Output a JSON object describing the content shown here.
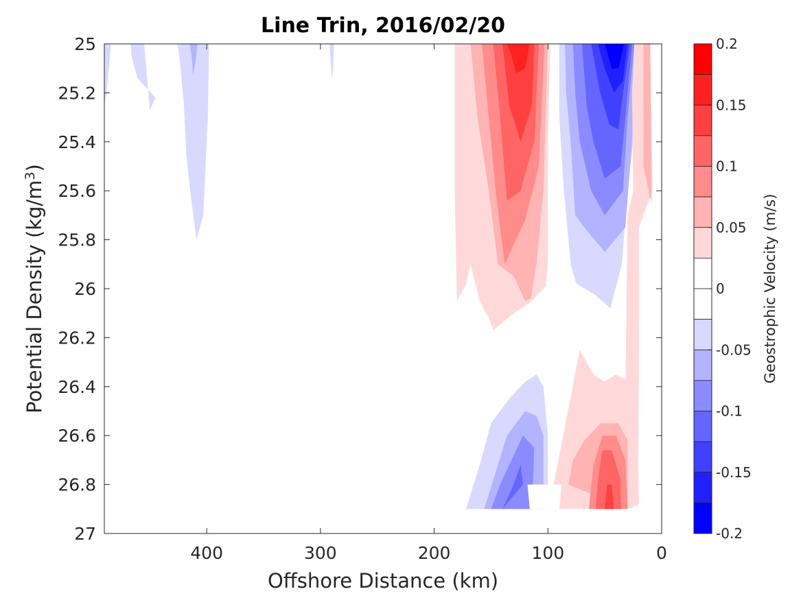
{
  "chart_data": {
    "type": "contour",
    "title": "Line Trin, 2016/02/20",
    "xlabel": "Offshore Distance (km)",
    "ylabel": "Potential Density (kg/m3)",
    "ylabel_base": "Potential Density (kg/m",
    "ylabel_sup": "3",
    "ylabel_close": ")",
    "xlim": [
      490,
      0
    ],
    "x_reversed": true,
    "ylim": [
      25,
      27
    ],
    "y_reversed": true,
    "xticks": [
      400,
      300,
      200,
      100,
      0
    ],
    "xtick_labels": [
      "400",
      "300",
      "200",
      "100",
      "0"
    ],
    "yticks": [
      25,
      25.2,
      25.4,
      25.6,
      25.8,
      26,
      26.2,
      26.4,
      26.6,
      26.8,
      27
    ],
    "ytick_labels": [
      "25",
      "25.2",
      "25.4",
      "25.6",
      "25.8",
      "26",
      "26.2",
      "26.4",
      "26.6",
      "26.8",
      "27"
    ],
    "colorbar": {
      "label": "Geostrophic Velocity (m/s)",
      "range": [
        -0.2,
        0.2
      ],
      "ticks": [
        0.2,
        0.15,
        0.1,
        0.05,
        0,
        -0.05,
        -0.1,
        -0.15,
        -0.2
      ],
      "tick_labels": [
        "0.2",
        "0.15",
        "0.1",
        "0.05",
        "0",
        "-0.05",
        "-0.1",
        "-0.15",
        "-0.2"
      ],
      "levels": [
        {
          "from": 0.175,
          "to": 0.2,
          "color": "#ff0000"
        },
        {
          "from": 0.15,
          "to": 0.175,
          "color": "#ff2020"
        },
        {
          "from": 0.125,
          "to": 0.15,
          "color": "#ff4040"
        },
        {
          "from": 0.1,
          "to": 0.125,
          "color": "#ff6565"
        },
        {
          "from": 0.075,
          "to": 0.1,
          "color": "#ff8b8b"
        },
        {
          "from": 0.05,
          "to": 0.075,
          "color": "#ffb3b3"
        },
        {
          "from": 0.025,
          "to": 0.05,
          "color": "#ffd9d9"
        },
        {
          "from": 0,
          "to": 0.025,
          "color": "#ffffff"
        },
        {
          "from": -0.025,
          "to": 0,
          "color": "#ffffff"
        },
        {
          "from": -0.05,
          "to": -0.025,
          "color": "#d9d9ff"
        },
        {
          "from": -0.075,
          "to": -0.05,
          "color": "#b3b3ff"
        },
        {
          "from": -0.1,
          "to": -0.075,
          "color": "#8b8bff"
        },
        {
          "from": -0.125,
          "to": -0.1,
          "color": "#6565ff"
        },
        {
          "from": -0.15,
          "to": -0.125,
          "color": "#4040ff"
        },
        {
          "from": -0.175,
          "to": -0.15,
          "color": "#2020ff"
        },
        {
          "from": -0.2,
          "to": -0.175,
          "color": "#0000ff"
        }
      ]
    },
    "regions": [
      {
        "name": "region-left-blue-1",
        "level": -0.0375,
        "points": [
          [
            490,
            25
          ],
          [
            484,
            25
          ],
          [
            488,
            25.2
          ],
          [
            490,
            25.25
          ]
        ]
      },
      {
        "name": "region-left-blue-2",
        "level": -0.0375,
        "points": [
          [
            467,
            25
          ],
          [
            455,
            25
          ],
          [
            450,
            25.27
          ],
          [
            445,
            25.22
          ],
          [
            461,
            25.14
          ],
          [
            466,
            25.05
          ]
        ]
      },
      {
        "name": "region-left-blue-3",
        "level": -0.0375,
        "points": [
          [
            426,
            25
          ],
          [
            398,
            25
          ],
          [
            399,
            25.3
          ],
          [
            403,
            25.7
          ],
          [
            409,
            25.8
          ],
          [
            414,
            25.62
          ],
          [
            418,
            25.45
          ],
          [
            420,
            25.25
          ],
          [
            424,
            25.05
          ]
        ]
      },
      {
        "name": "region-left-blue-4",
        "level": -0.0625,
        "points": [
          [
            415,
            25
          ],
          [
            408,
            25
          ],
          [
            410,
            25.08
          ],
          [
            412,
            25.13
          ],
          [
            413,
            25.06
          ]
        ]
      },
      {
        "name": "region-blue-speck",
        "level": -0.0375,
        "points": [
          [
            292,
            25
          ],
          [
            288,
            25
          ],
          [
            289,
            25.12
          ],
          [
            290,
            25.14
          ]
        ]
      },
      {
        "name": "region-upper-red-1",
        "level": 0.0375,
        "points": [
          [
            182,
            25
          ],
          [
            98,
            25
          ],
          [
            100,
            25.4
          ],
          [
            100,
            25.9
          ],
          [
            102,
            25.99
          ],
          [
            114,
            26.05
          ],
          [
            130,
            26.1
          ],
          [
            148,
            26.17
          ],
          [
            152,
            26.12
          ],
          [
            160,
            26.05
          ],
          [
            168,
            25.9
          ],
          [
            172,
            25.98
          ],
          [
            180,
            26.05
          ],
          [
            182,
            25.6
          ]
        ]
      },
      {
        "name": "region-upper-red-2",
        "level": 0.0625,
        "points": [
          [
            168,
            25
          ],
          [
            100,
            25
          ],
          [
            104,
            25.6
          ],
          [
            110,
            25.9
          ],
          [
            115,
            26.04
          ],
          [
            120,
            26.05
          ],
          [
            130,
            25.95
          ],
          [
            144,
            25.9
          ],
          [
            152,
            25.6
          ],
          [
            162,
            25.3
          ]
        ]
      },
      {
        "name": "region-upper-red-3",
        "level": 0.0875,
        "points": [
          [
            158,
            25
          ],
          [
            103,
            25
          ],
          [
            108,
            25.5
          ],
          [
            120,
            25.72
          ],
          [
            138,
            25.9
          ],
          [
            146,
            25.6
          ],
          [
            152,
            25.3
          ]
        ]
      },
      {
        "name": "region-upper-red-4",
        "level": 0.1125,
        "points": [
          [
            148,
            25
          ],
          [
            108,
            25
          ],
          [
            112,
            25.4
          ],
          [
            124,
            25.6
          ],
          [
            136,
            25.64
          ],
          [
            142,
            25.3
          ]
        ]
      },
      {
        "name": "region-upper-red-5",
        "level": 0.1375,
        "points": [
          [
            140,
            25
          ],
          [
            112,
            25
          ],
          [
            114,
            25.25
          ],
          [
            124,
            25.4
          ],
          [
            134,
            25.25
          ]
        ]
      },
      {
        "name": "region-upper-red-6",
        "level": 0.1625,
        "points": [
          [
            136,
            25
          ],
          [
            116,
            25
          ],
          [
            120,
            25.1
          ],
          [
            128,
            25.12
          ],
          [
            132,
            25.05
          ]
        ]
      },
      {
        "name": "region-upper-blue-1",
        "level": -0.0375,
        "points": [
          [
            90,
            25
          ],
          [
            18,
            25
          ],
          [
            22,
            25.2
          ],
          [
            25,
            25.4
          ],
          [
            30,
            25.6
          ],
          [
            35,
            25.9
          ],
          [
            45,
            26.08
          ],
          [
            60,
            26.02
          ],
          [
            75,
            25.98
          ],
          [
            80,
            25.9
          ],
          [
            86,
            25.6
          ],
          [
            90,
            25.3
          ]
        ]
      },
      {
        "name": "region-upper-blue-2",
        "level": -0.0625,
        "points": [
          [
            85,
            25
          ],
          [
            22,
            25
          ],
          [
            26,
            25.4
          ],
          [
            32,
            25.75
          ],
          [
            50,
            25.85
          ],
          [
            68,
            25.75
          ],
          [
            76,
            25.7
          ],
          [
            80,
            25.4
          ],
          [
            84,
            25.2
          ]
        ]
      },
      {
        "name": "region-upper-blue-3",
        "level": -0.0875,
        "points": [
          [
            78,
            25
          ],
          [
            24,
            25
          ],
          [
            30,
            25.3
          ],
          [
            34,
            25.6
          ],
          [
            50,
            25.7
          ],
          [
            62,
            25.6
          ],
          [
            72,
            25.4
          ],
          [
            76,
            25.2
          ]
        ]
      },
      {
        "name": "region-upper-blue-4",
        "level": -0.1125,
        "points": [
          [
            70,
            25
          ],
          [
            26,
            25
          ],
          [
            32,
            25.3
          ],
          [
            36,
            25.5
          ],
          [
            50,
            25.55
          ],
          [
            60,
            25.4
          ],
          [
            66,
            25.25
          ]
        ]
      },
      {
        "name": "region-upper-blue-5",
        "level": -0.1375,
        "points": [
          [
            62,
            25
          ],
          [
            28,
            25
          ],
          [
            34,
            25.2
          ],
          [
            38,
            25.35
          ],
          [
            46,
            25.33
          ],
          [
            54,
            25.2
          ]
        ]
      },
      {
        "name": "region-upper-blue-6",
        "level": -0.1625,
        "points": [
          [
            56,
            25
          ],
          [
            30,
            25
          ],
          [
            34,
            25.15
          ],
          [
            42,
            25.2
          ],
          [
            50,
            25.1
          ]
        ]
      },
      {
        "name": "region-upper-blue-7",
        "level": -0.1875,
        "points": [
          [
            50,
            25
          ],
          [
            33,
            25
          ],
          [
            38,
            25.1
          ],
          [
            44,
            25.1
          ]
        ]
      },
      {
        "name": "region-coastal-red-1",
        "level": 0.0375,
        "points": [
          [
            24,
            25
          ],
          [
            10,
            25
          ],
          [
            8,
            25.6
          ],
          [
            20,
            25.75
          ],
          [
            20,
            26.3
          ],
          [
            21,
            26.9
          ],
          [
            30,
            26.8
          ],
          [
            34,
            26.45
          ],
          [
            44,
            26.4
          ],
          [
            60,
            26.35
          ],
          [
            72,
            26.25
          ],
          [
            95,
            26.8
          ],
          [
            100,
            26.9
          ],
          [
            88,
            26.9
          ],
          [
            80,
            26.6
          ],
          [
            66,
            26.55
          ],
          [
            50,
            26.5
          ],
          [
            32,
            26.45
          ],
          [
            30,
            25.7
          ],
          [
            25,
            25.6
          ],
          [
            26,
            25.2
          ]
        ]
      },
      {
        "name": "region-coastal-red-2",
        "level": 0.0625,
        "points": [
          [
            16,
            25
          ],
          [
            10,
            25
          ],
          [
            9,
            25.65
          ],
          [
            16,
            25.5
          ]
        ]
      },
      {
        "name": "region-lower-red-1",
        "level": 0.0375,
        "points": [
          [
            90,
            26.8
          ],
          [
            88,
            26.9
          ],
          [
            30,
            26.9
          ],
          [
            20,
            26.88
          ],
          [
            22,
            26.5
          ],
          [
            28,
            26.38
          ],
          [
            40,
            26.35
          ],
          [
            58,
            26.4
          ],
          [
            72,
            26.4
          ],
          [
            82,
            26.5
          ],
          [
            88,
            26.65
          ]
        ]
      },
      {
        "name": "region-lower-red-2",
        "level": 0.0625,
        "points": [
          [
            82,
            26.8
          ],
          [
            30,
            26.9
          ],
          [
            30,
            26.62
          ],
          [
            38,
            26.55
          ],
          [
            54,
            26.55
          ],
          [
            68,
            26.62
          ],
          [
            78,
            26.7
          ]
        ]
      },
      {
        "name": "region-lower-red-3",
        "level": 0.0875,
        "points": [
          [
            64,
            26.9
          ],
          [
            30,
            26.9
          ],
          [
            32,
            26.7
          ],
          [
            40,
            26.6
          ],
          [
            52,
            26.6
          ],
          [
            60,
            26.72
          ]
        ]
      },
      {
        "name": "region-lower-red-4",
        "level": 0.1125,
        "points": [
          [
            58,
            26.9
          ],
          [
            36,
            26.9
          ],
          [
            36,
            26.78
          ],
          [
            44,
            26.66
          ],
          [
            52,
            26.66
          ],
          [
            56,
            26.78
          ]
        ]
      },
      {
        "name": "region-lower-red-5",
        "level": 0.1375,
        "points": [
          [
            50,
            26.9
          ],
          [
            42,
            26.9
          ],
          [
            44,
            26.8
          ],
          [
            48,
            26.8
          ]
        ]
      },
      {
        "name": "region-lower-blue-1",
        "level": -0.0375,
        "points": [
          [
            172,
            26.9
          ],
          [
            100,
            26.9
          ],
          [
            100,
            26.6
          ],
          [
            104,
            26.4
          ],
          [
            110,
            26.35
          ],
          [
            120,
            26.38
          ],
          [
            134,
            26.45
          ],
          [
            150,
            26.55
          ],
          [
            160,
            26.72
          ]
        ]
      },
      {
        "name": "region-lower-blue-2",
        "level": -0.0625,
        "points": [
          [
            156,
            26.9
          ],
          [
            104,
            26.9
          ],
          [
            104,
            26.6
          ],
          [
            110,
            26.52
          ],
          [
            120,
            26.5
          ],
          [
            136,
            26.6
          ],
          [
            148,
            26.78
          ]
        ]
      },
      {
        "name": "region-lower-blue-3",
        "level": -0.0875,
        "points": [
          [
            150,
            26.9
          ],
          [
            114,
            26.9
          ],
          [
            112,
            26.65
          ],
          [
            122,
            26.6
          ],
          [
            134,
            26.72
          ],
          [
            142,
            26.8
          ]
        ]
      },
      {
        "name": "region-lower-blue-4",
        "level": -0.1125,
        "points": [
          [
            140,
            26.9
          ],
          [
            122,
            26.8
          ],
          [
            124,
            26.72
          ],
          [
            132,
            26.82
          ]
        ]
      },
      {
        "name": "region-bottom-blank",
        "level": 0.0,
        "points": [
          [
            118,
            26.8
          ],
          [
            88,
            26.8
          ],
          [
            90,
            26.9
          ],
          [
            116,
            26.9
          ]
        ]
      }
    ]
  }
}
